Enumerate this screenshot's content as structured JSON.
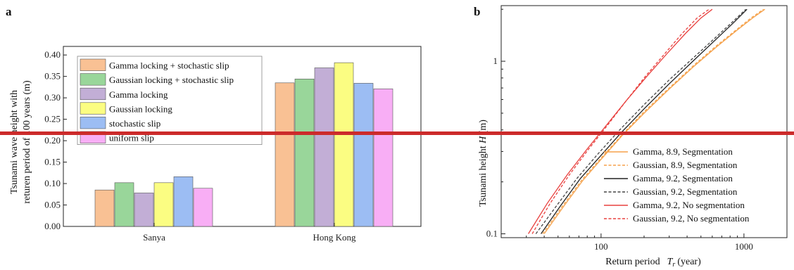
{
  "panels": {
    "a_label": "a",
    "b_label": "b"
  },
  "chart_data": [
    {
      "type": "bar",
      "ylabel_line1": "Tsunami wave height with",
      "ylabel_line2": "returen period of 100 years (m)",
      "categories": [
        "Sanya",
        "Hong Kong"
      ],
      "ylim": [
        0,
        0.42
      ],
      "yticks": [
        "0.00",
        "0.05",
        "0.10",
        "0.15",
        "0.20",
        "0.25",
        "0.30",
        "0.35",
        "0.40"
      ],
      "grid": false,
      "legend_position": "top-left",
      "series": [
        {
          "name": "Gamma locking + stochastic slip",
          "color": "#f9c194",
          "values": [
            0.085,
            0.335
          ]
        },
        {
          "name": "Gaussian locking + stochastic slip",
          "color": "#99d69a",
          "values": [
            0.102,
            0.344
          ]
        },
        {
          "name": "Gamma locking",
          "color": "#c2aed6",
          "values": [
            0.078,
            0.37
          ]
        },
        {
          "name": "Gaussian locking",
          "color": "#fbfd82",
          "values": [
            0.102,
            0.382
          ]
        },
        {
          "name": "stochastic slip",
          "color": "#9cbdf3",
          "values": [
            0.116,
            0.334
          ]
        },
        {
          "name": "uniform slip",
          "color": "#f8aef5",
          "values": [
            0.089,
            0.321
          ]
        }
      ]
    },
    {
      "type": "line",
      "xlabel": "Return period",
      "xlabel_sym": "T",
      "xlabel_sub": "r",
      "xlabel_unit": "(year)",
      "ylabel_main": "Tsunami height",
      "ylabel_sym": "H",
      "ylabel_unit": "(m)",
      "xscale": "log",
      "yscale": "log",
      "xlim": [
        20,
        2000
      ],
      "ylim": [
        0.095,
        2.1
      ],
      "xticks": [
        {
          "value": 100,
          "label": "100"
        },
        {
          "value": 1000,
          "label": "1000"
        }
      ],
      "yticks": [
        {
          "value": 0.1,
          "label": "0.1"
        },
        {
          "value": 1,
          "label": "1"
        }
      ],
      "grid": false,
      "legend_position": "bottom-right",
      "series": [
        {
          "name": "Gamma, 8.9, Segmentation",
          "color": "#f5a14a",
          "dash": "solid",
          "x": [
            40,
            55,
            75,
            100,
            140,
            200,
            300,
            450,
            650,
            900,
            1150,
            1400
          ],
          "y": [
            0.1,
            0.145,
            0.205,
            0.27,
            0.37,
            0.5,
            0.69,
            0.94,
            1.22,
            1.52,
            1.78,
            2.0
          ]
        },
        {
          "name": "Gaussian, 8.9, Segmentation",
          "color": "#f5a14a",
          "dash": "dashed",
          "x": [
            39,
            54,
            74,
            100,
            140,
            200,
            300,
            450,
            650,
            900,
            1130,
            1370
          ],
          "y": [
            0.1,
            0.146,
            0.207,
            0.275,
            0.375,
            0.51,
            0.7,
            0.955,
            1.24,
            1.54,
            1.79,
            2.0
          ]
        },
        {
          "name": "Gamma, 9.2, Segmentation",
          "color": "#222222",
          "dash": "solid",
          "x": [
            38,
            52,
            72,
            100,
            140,
            200,
            300,
            450,
            650,
            850,
            1050
          ],
          "y": [
            0.1,
            0.145,
            0.21,
            0.285,
            0.39,
            0.53,
            0.74,
            1.02,
            1.36,
            1.68,
            2.0
          ]
        },
        {
          "name": "Gaussian, 9.2, Segmentation",
          "color": "#444444",
          "dash": "dashed",
          "x": [
            35,
            49,
            68,
            95,
            135,
            200,
            300,
            450,
            650,
            850,
            1030
          ],
          "y": [
            0.1,
            0.146,
            0.21,
            0.29,
            0.4,
            0.56,
            0.78,
            1.06,
            1.4,
            1.72,
            2.0
          ]
        },
        {
          "name": "Gamma, 9.2, No segmentation",
          "color": "#e8403e",
          "dash": "solid",
          "x": [
            31,
            42,
            58,
            80,
            110,
            150,
            210,
            290,
            390,
            500,
            600
          ],
          "y": [
            0.1,
            0.15,
            0.22,
            0.31,
            0.43,
            0.59,
            0.82,
            1.11,
            1.45,
            1.78,
            2.0
          ]
        },
        {
          "name": "Gaussian, 9.2, No segmentation",
          "color": "#e8403e",
          "dash": "dashed",
          "x": [
            33,
            44,
            60,
            82,
            112,
            150,
            205,
            280,
            370,
            470,
            570
          ],
          "y": [
            0.1,
            0.15,
            0.22,
            0.31,
            0.43,
            0.59,
            0.82,
            1.11,
            1.45,
            1.78,
            2.0
          ]
        }
      ]
    }
  ]
}
